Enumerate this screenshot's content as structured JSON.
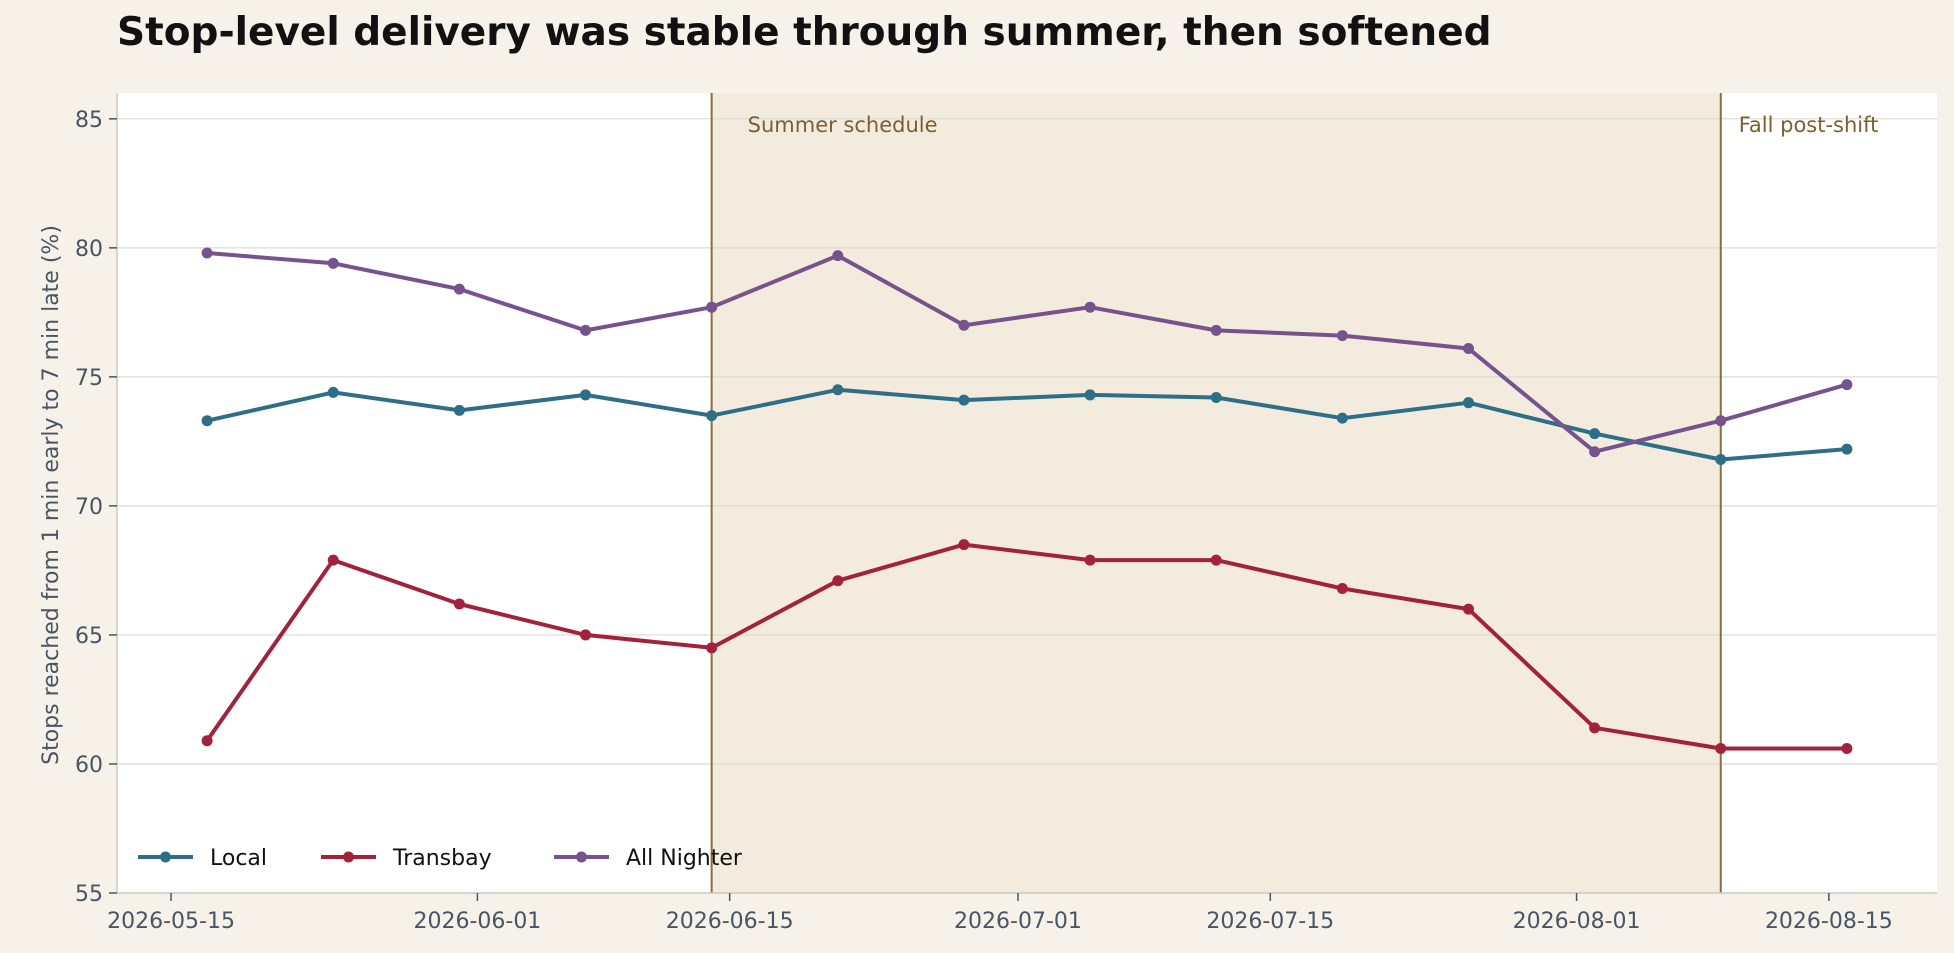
{
  "page": {
    "title": "Stop-level delivery was stable through summer, then softened"
  },
  "chart_data": {
    "type": "line",
    "title": "Stop-level delivery was stable through summer, then softened",
    "xlabel": "",
    "ylabel": "Stops reached from 1 min early to 7 min late (%)",
    "xlim": [
      "2026-05-12",
      "2026-08-21"
    ],
    "ylim": [
      55,
      86
    ],
    "yticks": [
      55,
      60,
      65,
      70,
      75,
      80,
      85
    ],
    "xticks": [
      "2026-05-15",
      "2026-06-01",
      "2026-06-15",
      "2026-07-01",
      "2026-07-15",
      "2026-08-01",
      "2026-08-15"
    ],
    "grid": "horizontal",
    "legend_position": "bottom-left",
    "x": [
      "2026-05-17",
      "2026-05-24",
      "2026-05-31",
      "2026-06-07",
      "2026-06-14",
      "2026-06-21",
      "2026-06-28",
      "2026-07-05",
      "2026-07-12",
      "2026-07-19",
      "2026-07-26",
      "2026-08-02",
      "2026-08-09",
      "2026-08-16"
    ],
    "series": [
      {
        "name": "Local",
        "color": "#2e6e86",
        "values": [
          73.3,
          74.4,
          73.7,
          74.3,
          73.5,
          74.5,
          74.1,
          74.3,
          74.2,
          73.4,
          74.0,
          72.8,
          71.8,
          72.2
        ]
      },
      {
        "name": "Transbay",
        "color": "#a2223c",
        "values": [
          60.9,
          67.9,
          66.2,
          65.0,
          64.5,
          67.1,
          68.5,
          67.9,
          67.9,
          66.8,
          66.0,
          61.4,
          60.6,
          60.6
        ]
      },
      {
        "name": "All Nighter",
        "color": "#76538c",
        "values": [
          79.8,
          79.4,
          78.4,
          76.8,
          77.7,
          79.7,
          77.0,
          77.7,
          76.8,
          76.6,
          76.1,
          72.1,
          73.3,
          74.7
        ]
      }
    ],
    "annotations": {
      "shaded_band": {
        "start": "2026-06-14",
        "end": "2026-08-09",
        "label": "Summer schedule",
        "color": "#f2ebde"
      },
      "vlines": [
        {
          "date": "2026-06-14",
          "color": "#8c6d3a"
        },
        {
          "date": "2026-08-09",
          "color": "#8c6d3a",
          "label": "Fall post-shift"
        }
      ]
    }
  }
}
